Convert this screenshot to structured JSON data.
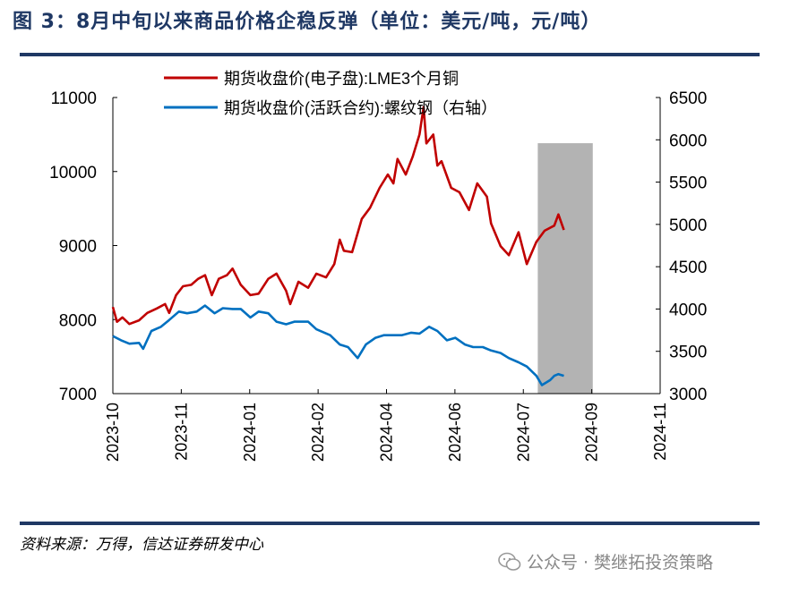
{
  "title": "图 3：8月中旬以来商品价格企稳反弹（单位：美元/吨，元/吨）",
  "source": "资料来源：万得，信达证券研发中心",
  "watermark": "公众号 · 樊继拓投资策略",
  "watermark_icon": "wechat-icon",
  "colors": {
    "title": "#1f3864",
    "copper": "#c00000",
    "rebar": "#0070c0",
    "shade": "#b3b3b3"
  },
  "chart_data": {
    "type": "line",
    "xlim": [
      "2023-10-01",
      "2024-11-02"
    ],
    "x_ticks": [
      "2023-10",
      "2023-11",
      "2024-01",
      "2024-02",
      "2024-04",
      "2024-06",
      "2024-07",
      "2024-09",
      "2024-11"
    ],
    "y_left": {
      "lim": [
        7000,
        11000
      ],
      "ticks": [
        "7000",
        "8000",
        "9000",
        "10000",
        "11000"
      ]
    },
    "y_right": {
      "lim": [
        3000,
        6500
      ],
      "ticks": [
        "3000",
        "3500",
        "4000",
        "4500",
        "5000",
        "5500",
        "6000",
        "6500"
      ]
    },
    "legend_placement": "top",
    "shaded_region": {
      "x": [
        "2024-08-05",
        "2024-09-14"
      ],
      "y_right_top": 5960
    },
    "series": [
      {
        "name": "期货收盘价(电子盘):LME3个月铜",
        "axis": "left",
        "color": "#c00000",
        "x": [
          "2023-10-01",
          "2023-10-04",
          "2023-10-08",
          "2023-10-13",
          "2023-10-20",
          "2023-10-26",
          "2023-11-02",
          "2023-11-08",
          "2023-11-11",
          "2023-11-16",
          "2023-11-21",
          "2023-11-27",
          "2023-12-02",
          "2023-12-07",
          "2023-12-12",
          "2023-12-17",
          "2023-12-23",
          "2023-12-27",
          "2024-01-02",
          "2024-01-09",
          "2024-01-15",
          "2024-01-22",
          "2024-01-28",
          "2024-02-04",
          "2024-02-07",
          "2024-02-13",
          "2024-02-20",
          "2024-02-26",
          "2024-03-04",
          "2024-03-10",
          "2024-03-14",
          "2024-03-17",
          "2024-03-23",
          "2024-03-30",
          "2024-04-05",
          "2024-04-12",
          "2024-04-18",
          "2024-04-22",
          "2024-04-25",
          "2024-05-01",
          "2024-05-06",
          "2024-05-11",
          "2024-05-14",
          "2024-05-16",
          "2024-05-21",
          "2024-05-24",
          "2024-05-27",
          "2024-06-03",
          "2024-06-09",
          "2024-06-16",
          "2024-06-22",
          "2024-06-29",
          "2024-07-02",
          "2024-07-09",
          "2024-07-15",
          "2024-07-22",
          "2024-07-28",
          "2024-08-04",
          "2024-08-10",
          "2024-08-17",
          "2024-08-20",
          "2024-08-24"
        ],
        "values": [
          8170,
          7970,
          8030,
          7940,
          7990,
          8090,
          8150,
          8210,
          8090,
          8330,
          8450,
          8470,
          8550,
          8600,
          8330,
          8550,
          8600,
          8690,
          8470,
          8330,
          8350,
          8550,
          8620,
          8390,
          8210,
          8510,
          8430,
          8620,
          8570,
          8750,
          9080,
          8930,
          8910,
          9360,
          9510,
          9780,
          9960,
          9840,
          10170,
          9960,
          10200,
          10500,
          10870,
          10380,
          10500,
          10080,
          10140,
          9780,
          9720,
          9480,
          9840,
          9660,
          9300,
          8990,
          8870,
          9180,
          8750,
          9050,
          9200,
          9270,
          9420,
          9210
        ]
      },
      {
        "name": "期货收盘价(活跃合约):螺纹钢（右轴）",
        "axis": "right",
        "color": "#0070c0",
        "x": [
          "2023-10-01",
          "2023-10-07",
          "2023-10-13",
          "2023-10-20",
          "2023-10-23",
          "2023-10-29",
          "2023-11-05",
          "2023-11-11",
          "2023-11-18",
          "2023-11-24",
          "2023-12-01",
          "2023-12-07",
          "2023-12-14",
          "2023-12-20",
          "2023-12-27",
          "2024-01-02",
          "2024-01-09",
          "2024-01-15",
          "2024-01-22",
          "2024-01-28",
          "2024-02-04",
          "2024-02-10",
          "2024-02-20",
          "2024-02-26",
          "2024-03-07",
          "2024-03-14",
          "2024-03-20",
          "2024-03-27",
          "2024-04-02",
          "2024-04-09",
          "2024-04-15",
          "2024-04-22",
          "2024-04-28",
          "2024-05-05",
          "2024-05-11",
          "2024-05-18",
          "2024-05-24",
          "2024-05-31",
          "2024-06-06",
          "2024-06-13",
          "2024-06-19",
          "2024-06-26",
          "2024-07-02",
          "2024-07-09",
          "2024-07-15",
          "2024-07-22",
          "2024-07-28",
          "2024-08-04",
          "2024-08-08",
          "2024-08-14",
          "2024-08-17",
          "2024-08-20",
          "2024-08-24"
        ],
        "values": [
          3680,
          3630,
          3590,
          3600,
          3530,
          3740,
          3790,
          3870,
          3970,
          3950,
          3970,
          4040,
          3950,
          4010,
          4000,
          4000,
          3900,
          3970,
          3950,
          3850,
          3820,
          3850,
          3850,
          3760,
          3690,
          3580,
          3550,
          3420,
          3580,
          3660,
          3690,
          3690,
          3690,
          3720,
          3710,
          3790,
          3740,
          3630,
          3660,
          3580,
          3550,
          3550,
          3510,
          3480,
          3420,
          3370,
          3320,
          3210,
          3100,
          3160,
          3210,
          3230,
          3210
        ]
      }
    ]
  }
}
